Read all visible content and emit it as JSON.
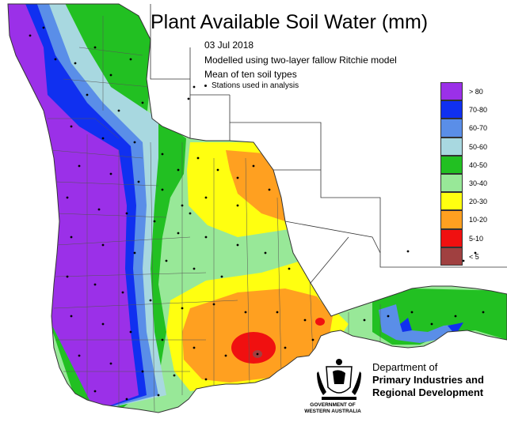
{
  "title": "Plant Available Soil Water (mm)",
  "subtitle": {
    "date": "03 Jul 2018",
    "model": "Modelled using two-layer fallow Ritchie model",
    "mean": "Mean of ten soil types",
    "stations_note": "Stations used in analysis"
  },
  "legend": {
    "items": [
      {
        "label": "> 80",
        "color": "#9b30e8"
      },
      {
        "label": "70-80",
        "color": "#1030f0"
      },
      {
        "label": "60-70",
        "color": "#5a8ee8"
      },
      {
        "label": "50-60",
        "color": "#a8d8e0"
      },
      {
        "label": "40-50",
        "color": "#22c022"
      },
      {
        "label": "30-40",
        "color": "#98e898"
      },
      {
        "label": "20-30",
        "color": "#ffff10"
      },
      {
        "label": "10-20",
        "color": "#ffa020"
      },
      {
        "label": "5-10",
        "color": "#f01010"
      },
      {
        "label": "< 5",
        "color": "#a04040"
      }
    ]
  },
  "colors": {
    "boundary": "#333333",
    "station": "#000000"
  },
  "department": {
    "line1": "Department of",
    "line2": "Primary Industries and",
    "line3": "Regional Development",
    "gov_line1": "GOVERNMENT OF",
    "gov_line2": "WESTERN AUSTRALIA",
    "crest_icon": "wa-government-crest-icon"
  }
}
